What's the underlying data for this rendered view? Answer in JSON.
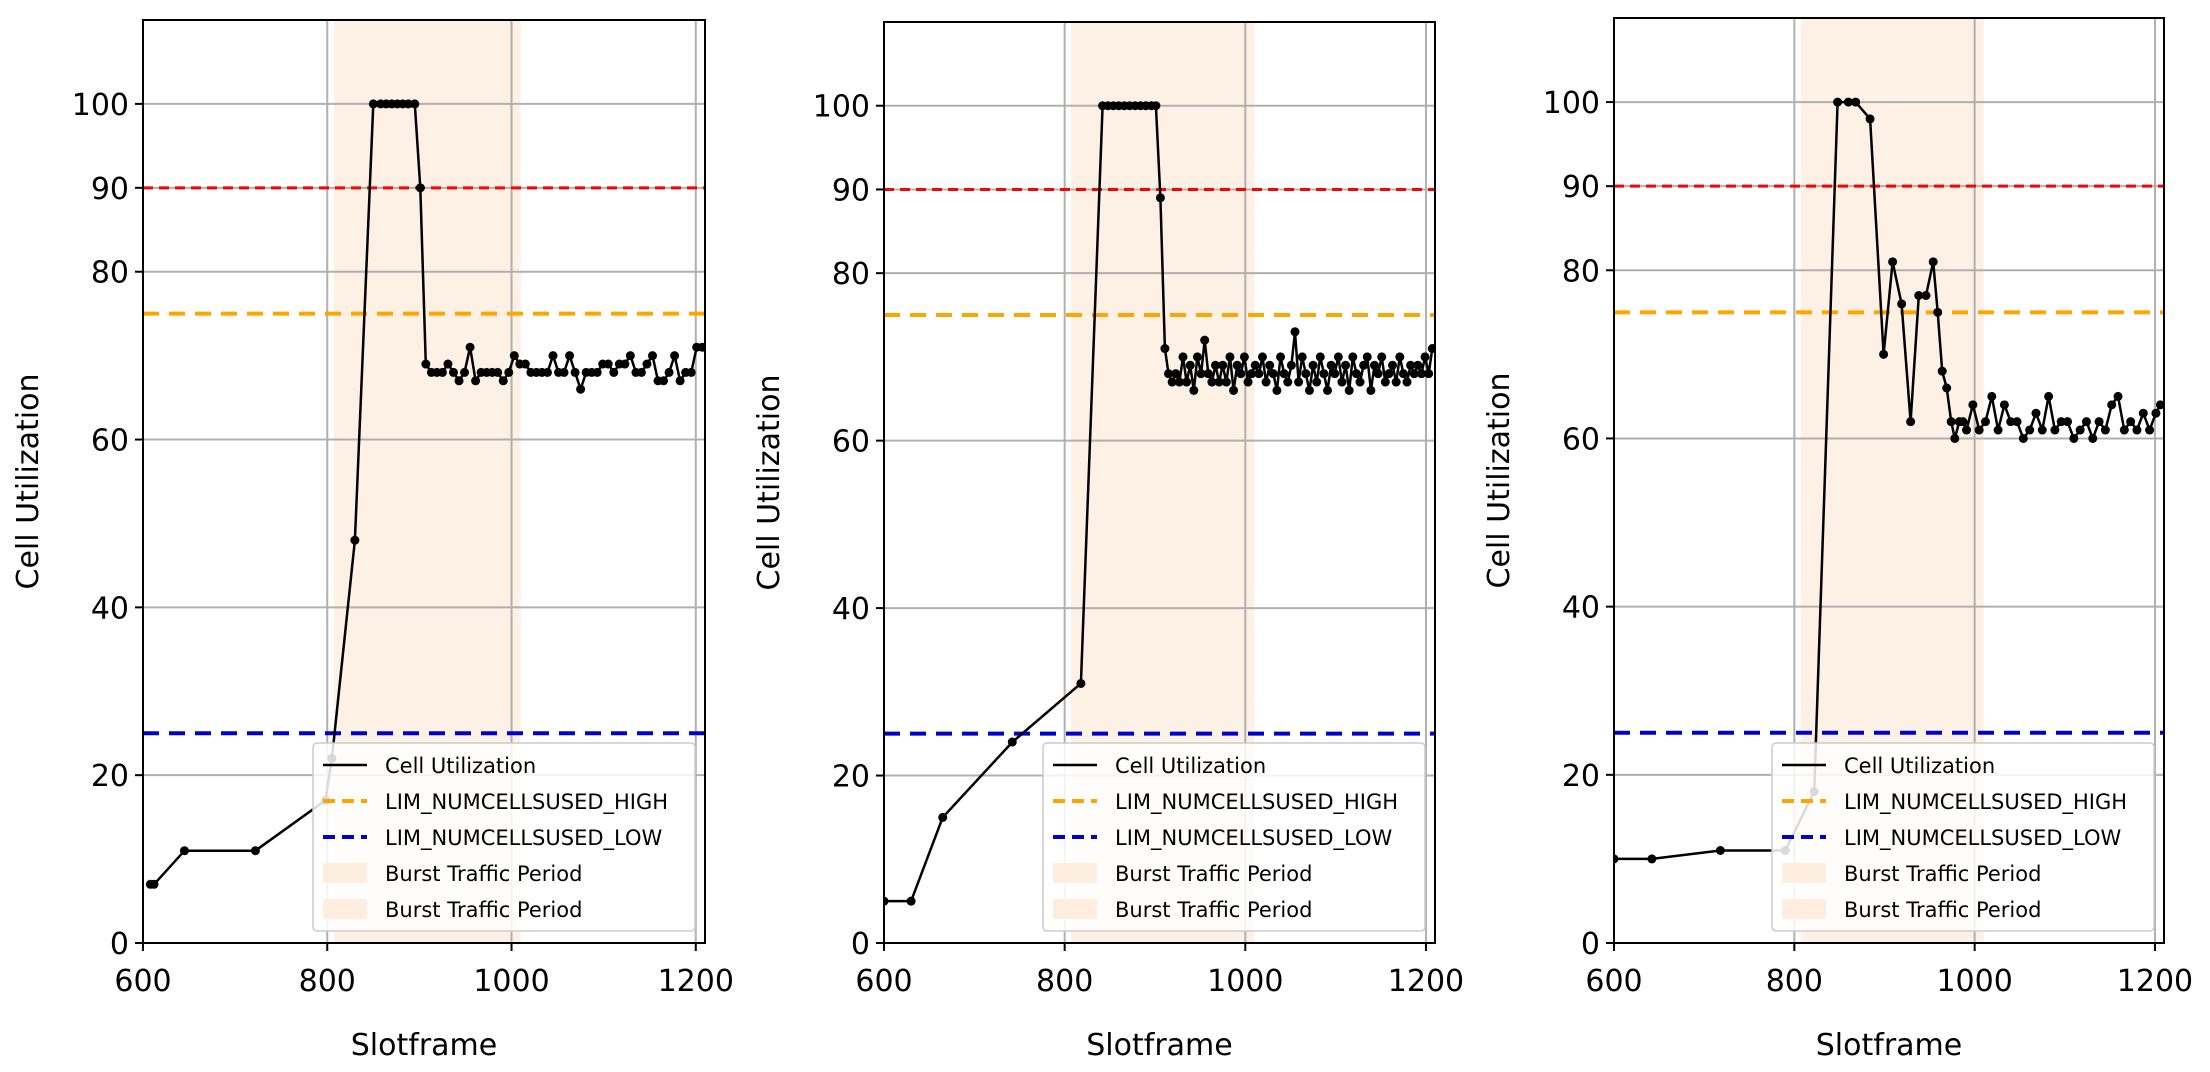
{
  "chart_data": [
    {
      "type": "line",
      "xlabel": "Slotframe",
      "ylabel": "Cell Utilization",
      "xlim": [
        600,
        1210
      ],
      "ylim": [
        0,
        110
      ],
      "xticks": [
        600,
        800,
        1000,
        1200
      ],
      "yticks": [
        0,
        20,
        40,
        60,
        80,
        90,
        100
      ],
      "grid": true,
      "shaded_x": [
        807,
        1010
      ],
      "legend_position": "bottom-right",
      "thresholds": [
        {
          "name": "red-line",
          "value": 90,
          "color": "#ff0000"
        },
        {
          "name": "high",
          "value": 75,
          "color": "#ffa500"
        },
        {
          "name": "low",
          "value": 25,
          "color": "#0000cc"
        }
      ],
      "legend": [
        "Cell Utilization",
        "LIM_NUMCELLSUSED_HIGH",
        "LIM_NUMCELLSUSED_LOW",
        "Burst Traffic Period",
        "Burst Traffic Period"
      ],
      "series": [
        {
          "name": "Cell Utilization",
          "x": [
            608,
            612,
            645,
            722,
            798,
            805,
            830,
            850,
            858,
            864,
            870,
            876,
            882,
            888,
            895,
            901,
            907,
            913,
            919,
            925,
            931,
            937,
            943,
            949,
            955,
            961,
            967,
            973,
            979,
            985,
            991,
            997,
            1003,
            1009,
            1015,
            1021,
            1027,
            1033,
            1039,
            1045,
            1051,
            1057,
            1063,
            1069,
            1075,
            1081,
            1087,
            1093,
            1099,
            1105,
            1111,
            1117,
            1123,
            1129,
            1135,
            1141,
            1147,
            1153,
            1159,
            1165,
            1171,
            1177,
            1183,
            1189,
            1195,
            1201,
            1207
          ],
          "values": [
            7,
            7,
            11,
            11,
            17,
            22,
            48,
            100,
            100,
            100,
            100,
            100,
            100,
            100,
            100,
            90,
            69,
            68,
            68,
            68,
            69,
            68,
            67,
            68,
            71,
            67,
            68,
            68,
            68,
            68,
            67,
            68,
            70,
            69,
            69,
            68,
            68,
            68,
            68,
            70,
            68,
            68,
            70,
            68,
            66,
            68,
            68,
            68,
            69,
            69,
            68,
            69,
            69,
            70,
            68,
            68,
            69,
            70,
            67,
            67,
            68,
            70,
            67,
            68,
            68,
            71,
            71
          ]
        }
      ]
    },
    {
      "type": "line",
      "xlabel": "Slotframe",
      "ylabel": "Cell Utilization",
      "xlim": [
        600,
        1210
      ],
      "ylim": [
        0,
        110
      ],
      "xticks": [
        600,
        800,
        1000,
        1200
      ],
      "yticks": [
        0,
        20,
        40,
        60,
        80,
        90,
        100
      ],
      "grid": true,
      "shaded_x": [
        807,
        1010
      ],
      "legend_position": "bottom-right",
      "thresholds": [
        {
          "name": "red-line",
          "value": 90,
          "color": "#ff0000"
        },
        {
          "name": "high",
          "value": 75,
          "color": "#ffa500"
        },
        {
          "name": "low",
          "value": 25,
          "color": "#0000cc"
        }
      ],
      "legend": [
        "Cell Utilization",
        "LIM_NUMCELLSUSED_HIGH",
        "LIM_NUMCELLSUSED_LOW",
        "Burst Traffic Period",
        "Burst Traffic Period"
      ],
      "series": [
        {
          "name": "Cell Utilization",
          "x": [
            600,
            630,
            665,
            742,
            818,
            842,
            848,
            854,
            860,
            866,
            872,
            878,
            884,
            890,
            896,
            901,
            906,
            911,
            915,
            919,
            923,
            927,
            931,
            935,
            939,
            943,
            947,
            951,
            955,
            959,
            963,
            967,
            971,
            975,
            979,
            983,
            987,
            991,
            995,
            999,
            1003,
            1007,
            1011,
            1015,
            1019,
            1023,
            1027,
            1031,
            1035,
            1039,
            1043,
            1047,
            1051,
            1055,
            1059,
            1063,
            1067,
            1071,
            1075,
            1079,
            1083,
            1087,
            1091,
            1095,
            1099,
            1103,
            1107,
            1111,
            1115,
            1119,
            1123,
            1127,
            1131,
            1135,
            1139,
            1143,
            1147,
            1151,
            1155,
            1159,
            1163,
            1167,
            1171,
            1175,
            1179,
            1183,
            1187,
            1191,
            1195,
            1199,
            1203,
            1207
          ],
          "values": [
            5,
            5,
            15,
            24,
            31,
            100,
            100,
            100,
            100,
            100,
            100,
            100,
            100,
            100,
            100,
            100,
            89,
            71,
            68,
            67,
            68,
            67,
            70,
            67,
            69,
            66,
            70,
            68,
            72,
            68,
            67,
            69,
            67,
            69,
            67,
            70,
            66,
            69,
            68,
            70,
            67,
            68,
            69,
            68,
            70,
            67,
            69,
            68,
            66,
            70,
            68,
            67,
            69,
            73,
            67,
            70,
            68,
            66,
            69,
            67,
            70,
            68,
            66,
            69,
            68,
            70,
            67,
            69,
            66,
            70,
            68,
            67,
            69,
            70,
            66,
            69,
            68,
            70,
            67,
            68,
            69,
            67,
            70,
            68,
            67,
            69,
            68,
            69,
            68,
            70,
            68,
            71
          ]
        }
      ]
    },
    {
      "type": "line",
      "xlabel": "Slotframe",
      "ylabel": "Cell Utilization",
      "xlim": [
        600,
        1210
      ],
      "ylim": [
        0,
        110
      ],
      "xticks": [
        600,
        800,
        1000,
        1200
      ],
      "yticks": [
        0,
        20,
        40,
        60,
        80,
        90,
        100
      ],
      "grid": true,
      "shaded_x": [
        807,
        1010
      ],
      "legend_position": "bottom-right",
      "thresholds": [
        {
          "name": "red-line",
          "value": 90,
          "color": "#ff0000"
        },
        {
          "name": "high",
          "value": 75,
          "color": "#ffa500"
        },
        {
          "name": "low",
          "value": 25,
          "color": "#0000cc"
        }
      ],
      "legend": [
        "Cell Utilization",
        "LIM_NUMCELLSUSED_HIGH",
        "LIM_NUMCELLSUSED_LOW",
        "Burst Traffic Period",
        "Burst Traffic Period"
      ],
      "series": [
        {
          "name": "Cell Utilization",
          "x": [
            600,
            642,
            718,
            790,
            822,
            848,
            860,
            868,
            884,
            899,
            909,
            919,
            929,
            938,
            946,
            954,
            959,
            964,
            969,
            974,
            978,
            983,
            987,
            991,
            998,
            1005,
            1012,
            1019,
            1026,
            1033,
            1040,
            1047,
            1054,
            1061,
            1068,
            1075,
            1082,
            1089,
            1096,
            1103,
            1110,
            1117,
            1124,
            1131,
            1138,
            1145,
            1152,
            1159,
            1166,
            1173,
            1180,
            1187,
            1194,
            1201,
            1206
          ],
          "values": [
            10,
            10,
            11,
            11,
            18,
            100,
            100,
            100,
            98,
            70,
            81,
            76,
            62,
            77,
            77,
            81,
            75,
            68,
            66,
            62,
            60,
            62,
            62,
            61,
            64,
            61,
            62,
            65,
            61,
            64,
            62,
            62,
            60,
            61,
            63,
            61,
            65,
            61,
            62,
            62,
            60,
            61,
            62,
            60,
            62,
            61,
            64,
            65,
            61,
            62,
            61,
            63,
            61,
            63,
            64
          ]
        }
      ]
    }
  ]
}
